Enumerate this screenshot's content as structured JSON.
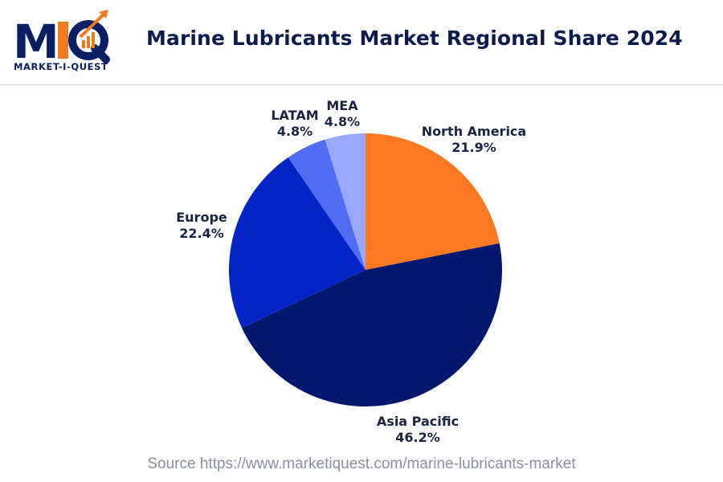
{
  "header": {
    "logo_letters": "MIQ",
    "logo_text": "MARKET-I-QUEST",
    "title": "Marine Lubricants Market Regional Share 2024"
  },
  "colors": {
    "north_america": "#fa7820",
    "asia_pacific": "#02176e",
    "europe": "#0524c8",
    "latam": "#4f6cf2",
    "mea": "#98a8fc",
    "logo_navy": "#0b1f66",
    "logo_orange": "#f07a1e"
  },
  "chart_data": {
    "type": "pie",
    "title": "Marine Lubricants Market Regional Share 2024",
    "unit": "%",
    "slices": [
      {
        "label": "North America",
        "value": 21.9,
        "display": "21.9%"
      },
      {
        "label": "Asia Pacific",
        "value": 46.2,
        "display": "46.2%"
      },
      {
        "label": "Europe",
        "value": 22.4,
        "display": "22.4%"
      },
      {
        "label": "LATAM",
        "value": 4.8,
        "display": "4.8%"
      },
      {
        "label": "MEA",
        "value": 4.8,
        "display": "4.8%"
      }
    ]
  },
  "footer": {
    "source": "Source https://www.marketiquest.com/marine-lubricants-market"
  }
}
